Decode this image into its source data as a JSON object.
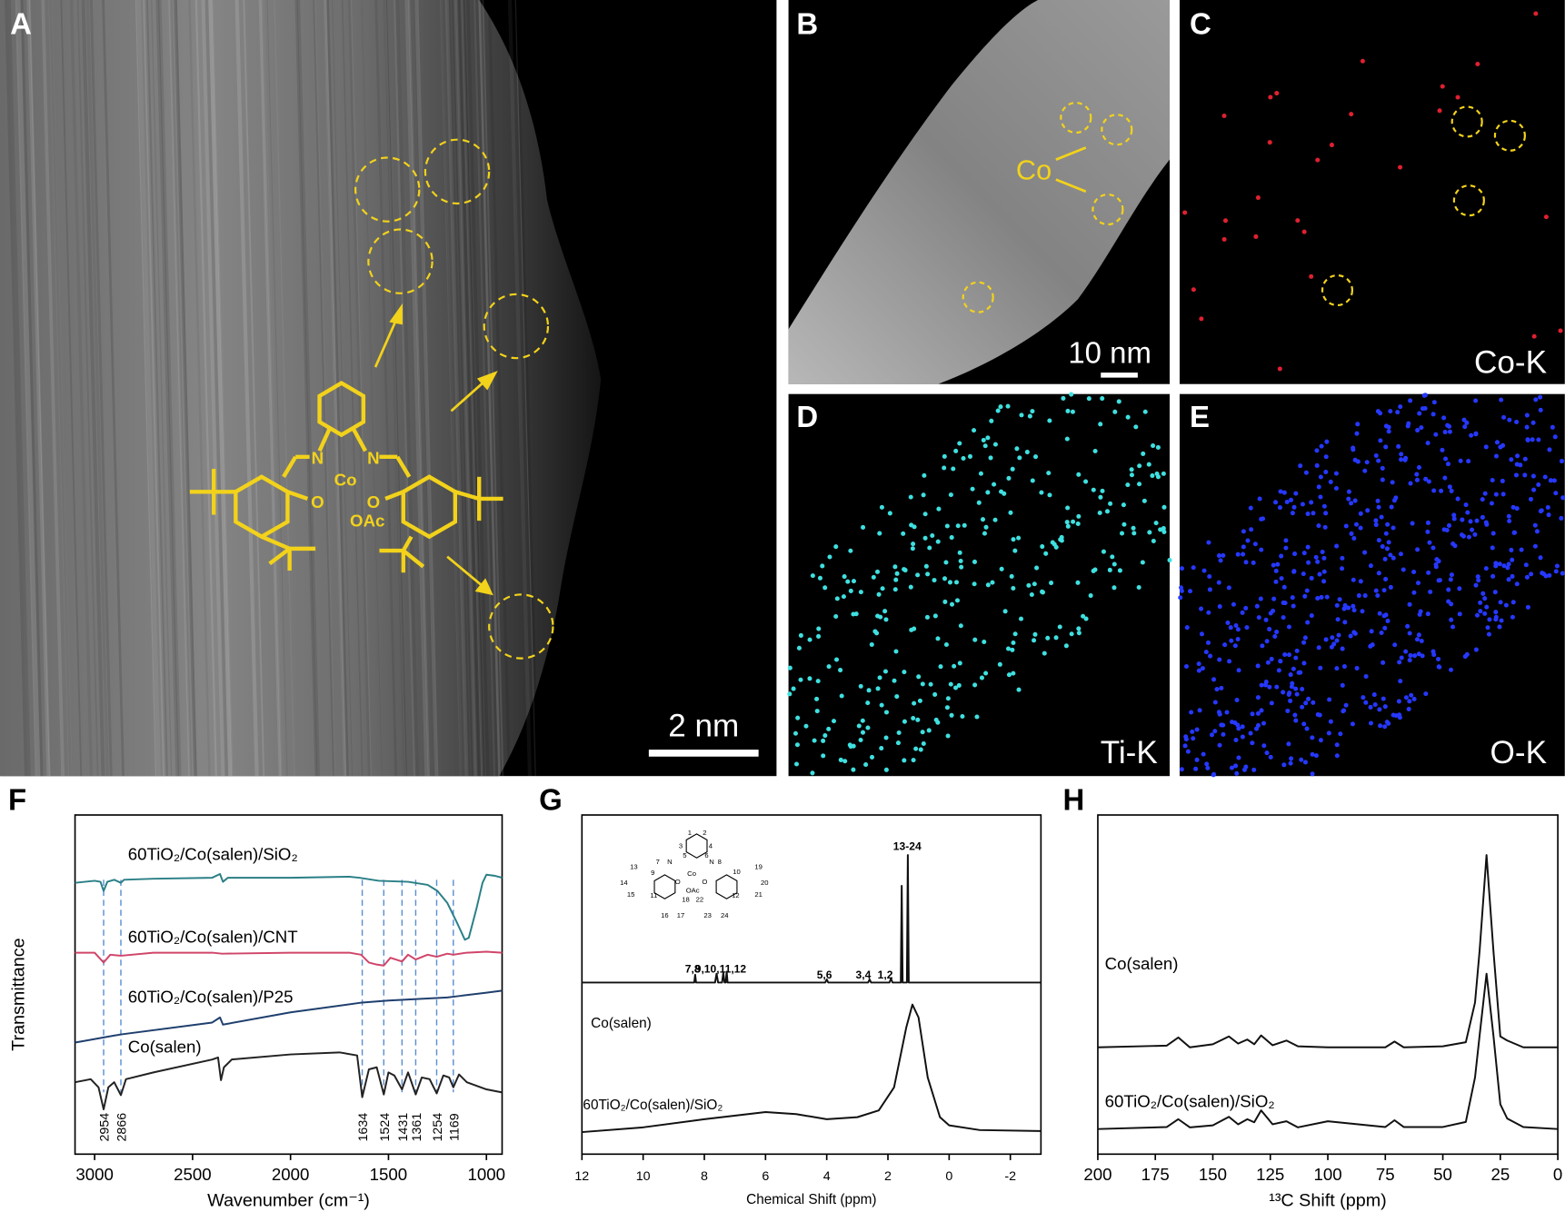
{
  "panels": {
    "A": {
      "label": "A",
      "scale_bar": "2 nm",
      "structure": [
        "N",
        "N",
        "Co",
        "O",
        "O",
        "OAc"
      ]
    },
    "B": {
      "label": "B",
      "scale_bar": "10 nm",
      "annotation": "Co"
    },
    "C": {
      "label": "C",
      "map": "Co-K"
    },
    "D": {
      "label": "D",
      "map": "Ti-K"
    },
    "E": {
      "label": "E",
      "map": "O-K"
    }
  },
  "chart_data": [
    {
      "type": "line",
      "label": "F",
      "xlabel": "Wavenumber (cm⁻¹)",
      "ylabel": "Transmittance",
      "xlim": [
        3100,
        920
      ],
      "xticks": [
        3000,
        2500,
        2000,
        1500,
        1000
      ],
      "ylim": [
        0,
        100
      ],
      "peaks": [
        2954,
        2866,
        1634,
        1524,
        1431,
        1361,
        1254,
        1169
      ],
      "series": [
        {
          "name": "60TiO₂/Co(salen)/SiO₂",
          "color": "#2a7f86",
          "x": [
            3100,
            3000,
            2970,
            2954,
            2935,
            2900,
            2866,
            2850,
            2700,
            2400,
            2360,
            2345,
            2320,
            2000,
            1700,
            1650,
            1550,
            1400,
            1300,
            1250,
            1200,
            1150,
            1110,
            1090,
            1050,
            1020,
            1000,
            960,
            920
          ],
          "values": [
            80,
            80.6,
            80.3,
            77.6,
            80.3,
            80.9,
            80,
            80.9,
            81.2,
            81.5,
            82.6,
            80.3,
            81.5,
            81.5,
            81.8,
            81.5,
            80.6,
            80.3,
            79.4,
            77.6,
            74.1,
            68.2,
            63.2,
            63.8,
            72.6,
            80,
            82.4,
            82.1,
            81.5
          ]
        },
        {
          "name": "60TiO₂/Co(salen)/CNT",
          "color": "#d0456a",
          "x": [
            3100,
            3000,
            2954,
            2920,
            2866,
            2700,
            2400,
            2350,
            2000,
            1700,
            1640,
            1600,
            1560,
            1524,
            1490,
            1431,
            1400,
            1361,
            1300,
            1254,
            1200,
            1169,
            1100,
            1000,
            920
          ],
          "values": [
            59.4,
            59.4,
            56.5,
            58.8,
            58.5,
            59.4,
            59.4,
            59.1,
            59.4,
            59.4,
            58.8,
            56.5,
            55.9,
            55.6,
            57.9,
            56.8,
            58.8,
            57.4,
            58.8,
            58.2,
            59.1,
            58.8,
            59.4,
            59.7,
            59.4
          ]
        },
        {
          "name": "60TiO₂/Co(salen)/P25",
          "color": "#1f3f6e",
          "x": [
            3100,
            2954,
            2866,
            2400,
            2360,
            2345,
            2000,
            1634,
            1500,
            1200,
            1000,
            920
          ],
          "values": [
            32.9,
            34.4,
            35.3,
            38.8,
            40.3,
            38.2,
            41.8,
            44.7,
            45.3,
            46.2,
            47.6,
            48.2
          ]
        },
        {
          "name": "Co(salen)",
          "color": "#222222",
          "x": [
            3100,
            3020,
            2980,
            2954,
            2930,
            2900,
            2866,
            2840,
            2700,
            2400,
            2370,
            2355,
            2340,
            2300,
            2000,
            1750,
            1660,
            1634,
            1600,
            1560,
            1524,
            1500,
            1470,
            1431,
            1400,
            1361,
            1330,
            1290,
            1254,
            1220,
            1190,
            1169,
            1140,
            1100,
            1000,
            920
          ],
          "values": [
            21.2,
            22.1,
            19.7,
            13.2,
            19.7,
            21.2,
            17.4,
            22.1,
            24.1,
            27.9,
            28.5,
            21.8,
            25.6,
            27.9,
            29.4,
            30,
            29.1,
            16.8,
            25,
            25.6,
            17.6,
            24.1,
            23.2,
            19.1,
            24.1,
            17.6,
            22.6,
            22.1,
            17.9,
            23.2,
            22.6,
            19.7,
            23.5,
            21.2,
            19.1,
            18.2
          ]
        }
      ]
    },
    {
      "type": "line",
      "label": "G",
      "xlabel": "Chemical Shift (ppm)",
      "xlim": [
        12,
        -3
      ],
      "xticks": [
        12,
        10,
        8,
        6,
        4,
        2,
        0,
        -2
      ],
      "ylim": [
        0,
        100
      ],
      "annotations": [
        "7,8",
        "9,10,11,12",
        "5,6",
        "3,4",
        "1,2",
        "13-24"
      ],
      "inset_labels": [
        "1",
        "2",
        "3",
        "4",
        "5",
        "6",
        "7",
        "8",
        "9",
        "10",
        "11",
        "12",
        "13",
        "14",
        "15",
        "16",
        "17",
        "18",
        "19",
        "20",
        "21",
        "22",
        "23",
        "24",
        "N",
        "N",
        "Co",
        "O",
        "O",
        "OAc"
      ],
      "series": [
        {
          "name": "Co(salen)",
          "color": "#111111",
          "x": [
            12,
            8.33,
            8.3,
            8.27,
            7.65,
            7.6,
            7.55,
            7.42,
            7.38,
            7.34,
            7.3,
            7.27,
            7.24,
            4.05,
            4,
            3.95,
            2.65,
            2.6,
            2.55,
            1.95,
            1.9,
            1.85,
            1.58,
            1.55,
            1.52,
            1.38,
            1.35,
            1.32,
            -3
          ],
          "values": [
            50.6,
            50.6,
            52.9,
            50.6,
            50.6,
            53.2,
            50.6,
            50.6,
            53.5,
            50.6,
            50.6,
            53.8,
            50.6,
            50.6,
            51.5,
            50.6,
            50.6,
            51.5,
            50.6,
            50.6,
            51.8,
            50.6,
            50.6,
            79.1,
            50.6,
            50.6,
            88.2,
            50.6,
            50.6
          ]
        },
        {
          "name": "60TiO₂/Co(salen)/SiO₂",
          "color": "#111111",
          "x": [
            12,
            10,
            8,
            6,
            5,
            4,
            3,
            2.3,
            1.8,
            1.4,
            1.2,
            1,
            0.7,
            0.3,
            0,
            -1,
            -3
          ],
          "values": [
            6.5,
            7.9,
            10.3,
            12.4,
            11.8,
            10.3,
            10.9,
            12.9,
            19.7,
            37.4,
            44.1,
            40.3,
            22.6,
            10.9,
            8.5,
            7.1,
            6.8
          ]
        }
      ]
    },
    {
      "type": "line",
      "label": "H",
      "xlabel": "¹³C Shift (ppm)",
      "xlim": [
        200,
        0
      ],
      "xticks": [
        200,
        175,
        150,
        125,
        100,
        75,
        50,
        25,
        0
      ],
      "ylim": [
        0,
        100
      ],
      "series": [
        {
          "name": "Co(salen)",
          "color": "#111111",
          "x": [
            200,
            170,
            165,
            160,
            150,
            143,
            139,
            135,
            132,
            129,
            124,
            118,
            113,
            100,
            75,
            71,
            67,
            50,
            40,
            36,
            34,
            31,
            28,
            25,
            22,
            15,
            0
          ],
          "values": [
            31.5,
            32,
            34.4,
            31.5,
            32.4,
            34.7,
            32.6,
            33.8,
            32.4,
            35,
            32.1,
            33.5,
            31.8,
            31.5,
            31.5,
            33.2,
            31.5,
            31.8,
            33,
            44.7,
            60,
            88.2,
            60,
            34.7,
            33.5,
            31.5,
            31.5
          ]
        },
        {
          "name": "60TiO₂/Co(salen)/SiO₂",
          "color": "#111111",
          "x": [
            200,
            170,
            165,
            160,
            150,
            143,
            139,
            135,
            132,
            129,
            124,
            118,
            113,
            100,
            75,
            71,
            67,
            50,
            40,
            36,
            34,
            31,
            28,
            25,
            22,
            15,
            0
          ],
          "values": [
            7.4,
            8,
            10.3,
            7.9,
            8.5,
            11,
            8.8,
            10.3,
            9.4,
            12.9,
            8.8,
            9.7,
            7.9,
            9.7,
            8,
            10,
            8,
            8,
            9.5,
            22.6,
            35,
            53.2,
            35,
            14.7,
            10.5,
            8,
            7.4
          ]
        }
      ]
    }
  ]
}
